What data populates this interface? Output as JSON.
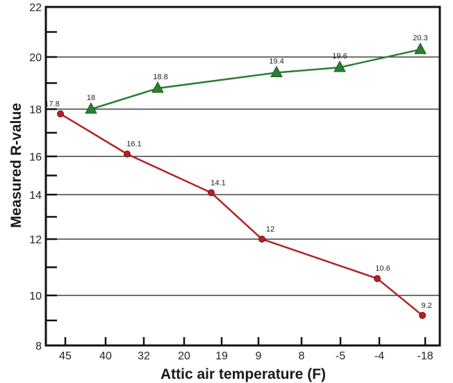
{
  "chart_data": {
    "type": "line",
    "xlabel": "Attic air temperature (F)",
    "ylabel": "Measured R-value",
    "x_tick_labels": [
      "45",
      "40",
      "32",
      "20",
      "19",
      "9",
      "8",
      "-5",
      "-4",
      "-18"
    ],
    "ylim": [
      8,
      22
    ],
    "y_major_ticks": [
      8,
      10,
      12,
      14,
      16,
      18,
      20,
      22
    ],
    "grid": "horizontal at major ticks",
    "legend": "none",
    "series": [
      {
        "color": "#2e7d32",
        "marker": "triangle",
        "points": [
          {
            "x": "42",
            "y": 18,
            "label": "18"
          },
          {
            "x": "27",
            "y": 18.8,
            "label": "18.8"
          },
          {
            "x": "9 (approx.)",
            "y": 19.4,
            "label": "19.4"
          },
          {
            "x": "-5",
            "y": 19.6,
            "label": "19.6"
          },
          {
            "x": "-18",
            "y": 20.3,
            "label": "20.3"
          }
        ]
      },
      {
        "color": "#b22222",
        "marker": "circle",
        "points": [
          {
            "x": "45",
            "y": 17.8,
            "label": "17.8"
          },
          {
            "x": "35",
            "y": 16.1,
            "label": "16.1"
          },
          {
            "x": "19",
            "y": 14.1,
            "label": "14.1"
          },
          {
            "x": "9",
            "y": 12,
            "label": "12"
          },
          {
            "x": "-4",
            "y": 10.6,
            "label": "10.6"
          },
          {
            "x": "-18",
            "y": 9.2,
            "label": "9.2"
          }
        ]
      }
    ]
  }
}
